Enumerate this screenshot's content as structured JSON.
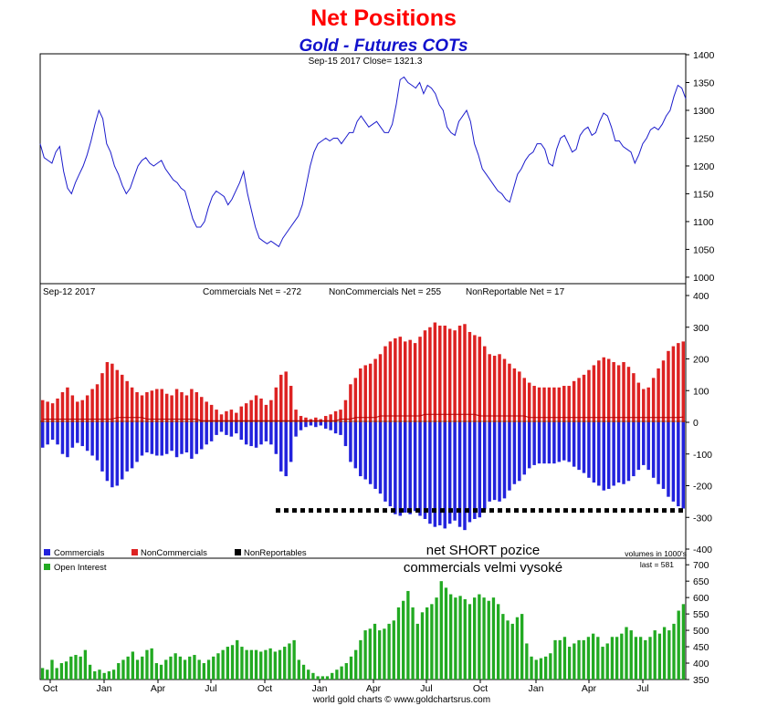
{
  "title": "Net Positions",
  "subtitle": "Gold - Futures COTs",
  "footer": "world gold charts © www.goldchartsrus.com",
  "chart_data": [
    {
      "type": "line",
      "header": "Sep-15  2017   Close= 1321.3",
      "series": [
        {
          "values": [
            1240,
            1215,
            1210,
            1205,
            1225,
            1235,
            1190,
            1160,
            1150,
            1170,
            1185,
            1200,
            1220,
            1245,
            1275,
            1300,
            1285,
            1240,
            1225,
            1200,
            1185,
            1165,
            1150,
            1160,
            1180,
            1200,
            1210,
            1215,
            1205,
            1200,
            1205,
            1210,
            1195,
            1185,
            1175,
            1170,
            1160,
            1155,
            1130,
            1105,
            1090,
            1090,
            1100,
            1125,
            1145,
            1155,
            1150,
            1145,
            1130,
            1140,
            1155,
            1170,
            1190,
            1150,
            1120,
            1090,
            1070,
            1065,
            1060,
            1065,
            1060,
            1055,
            1070,
            1080,
            1090,
            1100,
            1110,
            1130,
            1165,
            1200,
            1225,
            1240,
            1245,
            1250,
            1245,
            1250,
            1250,
            1240,
            1250,
            1260,
            1260,
            1280,
            1290,
            1280,
            1270,
            1275,
            1280,
            1270,
            1260,
            1260,
            1275,
            1310,
            1355,
            1360,
            1350,
            1345,
            1340,
            1350,
            1330,
            1345,
            1340,
            1330,
            1310,
            1300,
            1270,
            1260,
            1255,
            1280,
            1290,
            1300,
            1280,
            1240,
            1220,
            1195,
            1185,
            1175,
            1165,
            1155,
            1150,
            1140,
            1135,
            1160,
            1185,
            1195,
            1210,
            1220,
            1225,
            1240,
            1240,
            1230,
            1205,
            1200,
            1230,
            1250,
            1255,
            1240,
            1225,
            1230,
            1255,
            1265,
            1270,
            1255,
            1260,
            1280,
            1295,
            1290,
            1270,
            1245,
            1245,
            1235,
            1230,
            1225,
            1205,
            1220,
            1240,
            1250,
            1265,
            1270,
            1265,
            1275,
            1290,
            1300,
            1325,
            1345,
            1340,
            1321
          ]
        }
      ],
      "yticks": [
        1000,
        1050,
        1100,
        1150,
        1200,
        1250,
        1300,
        1350,
        1400
      ],
      "ylim": [
        990,
        1400
      ]
    },
    {
      "type": "bar",
      "header_date": "Sep-12  2017",
      "header_commercials": "Commercials Net = -272",
      "header_noncommercials": "NonCommercials Net = 255",
      "header_nonreportable": "NonReportable Net = 17",
      "series": [
        {
          "name": "Commercials",
          "color": "#2222dd",
          "values": [
            -80,
            -70,
            -55,
            -70,
            -100,
            -110,
            -80,
            -65,
            -75,
            -90,
            -105,
            -120,
            -155,
            -185,
            -205,
            -200,
            -180,
            -155,
            -145,
            -125,
            -105,
            -95,
            -100,
            -105,
            -105,
            -100,
            -90,
            -110,
            -100,
            -95,
            -115,
            -100,
            -85,
            -70,
            -60,
            -40,
            -30,
            -40,
            -45,
            -35,
            -55,
            -70,
            -75,
            -80,
            -70,
            -60,
            -70,
            -100,
            -155,
            -170,
            -125,
            -45,
            -25,
            -15,
            -10,
            -15,
            -10,
            -20,
            -25,
            -35,
            -40,
            -75,
            -125,
            -145,
            -170,
            -180,
            -195,
            -210,
            -225,
            -250,
            -265,
            -290,
            -295,
            -285,
            -290,
            -280,
            -295,
            -305,
            -320,
            -330,
            -325,
            -335,
            -320,
            -310,
            -330,
            -340,
            -315,
            -305,
            -300,
            -275,
            -250,
            -245,
            -250,
            -240,
            -215,
            -195,
            -185,
            -165,
            -145,
            -135,
            -130,
            -130,
            -130,
            -130,
            -125,
            -120,
            -125,
            -140,
            -150,
            -160,
            -175,
            -190,
            -200,
            -215,
            -210,
            -200,
            -190,
            -195,
            -185,
            -170,
            -150,
            -135,
            -150,
            -175,
            -195,
            -210,
            -235,
            -250,
            -265,
            -272
          ]
        },
        {
          "name": "NonCommercials",
          "color": "#dd2222",
          "values": [
            70,
            65,
            60,
            75,
            95,
            110,
            85,
            65,
            70,
            85,
            105,
            120,
            155,
            190,
            185,
            165,
            150,
            130,
            110,
            95,
            85,
            95,
            100,
            105,
            105,
            90,
            85,
            105,
            95,
            85,
            105,
            95,
            80,
            65,
            55,
            40,
            25,
            35,
            40,
            30,
            50,
            60,
            70,
            85,
            75,
            55,
            70,
            110,
            150,
            160,
            115,
            40,
            20,
            15,
            10,
            15,
            10,
            20,
            25,
            35,
            40,
            70,
            120,
            140,
            170,
            180,
            185,
            200,
            215,
            240,
            255,
            265,
            270,
            255,
            260,
            250,
            270,
            290,
            300,
            315,
            305,
            305,
            295,
            290,
            305,
            310,
            285,
            275,
            270,
            240,
            215,
            210,
            215,
            200,
            185,
            170,
            160,
            140,
            125,
            115,
            110,
            110,
            110,
            110,
            110,
            115,
            115,
            130,
            140,
            150,
            165,
            180,
            195,
            205,
            200,
            190,
            180,
            190,
            175,
            155,
            125,
            105,
            110,
            140,
            170,
            195,
            225,
            240,
            250,
            255
          ]
        },
        {
          "name": "NonReportables",
          "color": "#000000",
          "values": [
            10,
            10,
            10,
            10,
            10,
            10,
            10,
            10,
            10,
            10,
            10,
            10,
            10,
            10,
            10,
            15,
            15,
            15,
            15,
            15,
            15,
            10,
            10,
            10,
            10,
            10,
            10,
            10,
            10,
            10,
            10,
            10,
            5,
            5,
            5,
            5,
            5,
            5,
            5,
            5,
            5,
            5,
            5,
            5,
            5,
            5,
            5,
            5,
            5,
            5,
            5,
            5,
            5,
            5,
            5,
            5,
            5,
            5,
            5,
            5,
            10,
            10,
            10,
            15,
            15,
            15,
            15,
            15,
            20,
            20,
            20,
            20,
            20,
            20,
            20,
            20,
            20,
            25,
            25,
            25,
            25,
            25,
            25,
            25,
            25,
            25,
            25,
            25,
            20,
            20,
            20,
            20,
            20,
            20,
            20,
            20,
            20,
            20,
            15,
            15,
            15,
            15,
            15,
            15,
            15,
            15,
            15,
            15,
            15,
            15,
            15,
            15,
            15,
            15,
            15,
            15,
            15,
            15,
            15,
            15,
            15,
            15,
            15,
            15,
            15,
            15,
            15,
            15,
            15,
            17
          ]
        }
      ],
      "yticks": [
        -400,
        -300,
        -200,
        -100,
        0,
        100,
        200,
        300,
        400
      ],
      "ylim": [
        -400,
        400
      ],
      "annotation": "net SHORT pozice",
      "annotation2": "commercials velmi vysoké",
      "reference_line": -278,
      "volume_note": "volumes in 1000's"
    },
    {
      "type": "bar",
      "legend": "Open Interest",
      "last_note": "last = 581",
      "series": [
        {
          "name": "Open Interest",
          "color": "#22aa22",
          "values": [
            385,
            380,
            410,
            385,
            400,
            405,
            420,
            425,
            420,
            440,
            395,
            375,
            380,
            370,
            375,
            380,
            400,
            410,
            420,
            435,
            410,
            420,
            440,
            445,
            400,
            395,
            410,
            420,
            430,
            420,
            410,
            420,
            425,
            410,
            400,
            410,
            420,
            430,
            440,
            450,
            455,
            470,
            450,
            440,
            440,
            440,
            435,
            440,
            445,
            435,
            440,
            450,
            460,
            470,
            410,
            395,
            380,
            370,
            360,
            360,
            360,
            370,
            380,
            390,
            400,
            420,
            440,
            470,
            500,
            505,
            520,
            500,
            505,
            520,
            530,
            570,
            590,
            620,
            570,
            520,
            555,
            570,
            580,
            600,
            650,
            630,
            610,
            600,
            605,
            595,
            580,
            600,
            610,
            600,
            590,
            600,
            580,
            550,
            530,
            520,
            540,
            550,
            460,
            420,
            410,
            415,
            420,
            430,
            470,
            470,
            480,
            450,
            460,
            470,
            470,
            480,
            490,
            480,
            450,
            460,
            480,
            480,
            490,
            510,
            500,
            480,
            480,
            470,
            480,
            500,
            490,
            510,
            500,
            520,
            560,
            580
          ]
        }
      ],
      "yticks": [
        350,
        400,
        450,
        500,
        550,
        600,
        650,
        700
      ],
      "ylim": [
        350,
        720
      ]
    }
  ],
  "legend": {
    "commercials": "Commercials",
    "noncommercials": "NonCommercials",
    "nonreportables": "NonReportables"
  },
  "xticks": [
    "Oct",
    "Jan",
    "Apr",
    "Jul",
    "Oct",
    "Jan",
    "Apr",
    "Jul",
    "Oct",
    "Jan",
    "Apr",
    "Jul"
  ],
  "colors": {
    "title": "#ff0000",
    "subtitle": "#1111cc",
    "price_line": "#1c1ccc",
    "commercials": "#2222dd",
    "noncommercials": "#dd2222",
    "open_interest": "#22aa22"
  }
}
